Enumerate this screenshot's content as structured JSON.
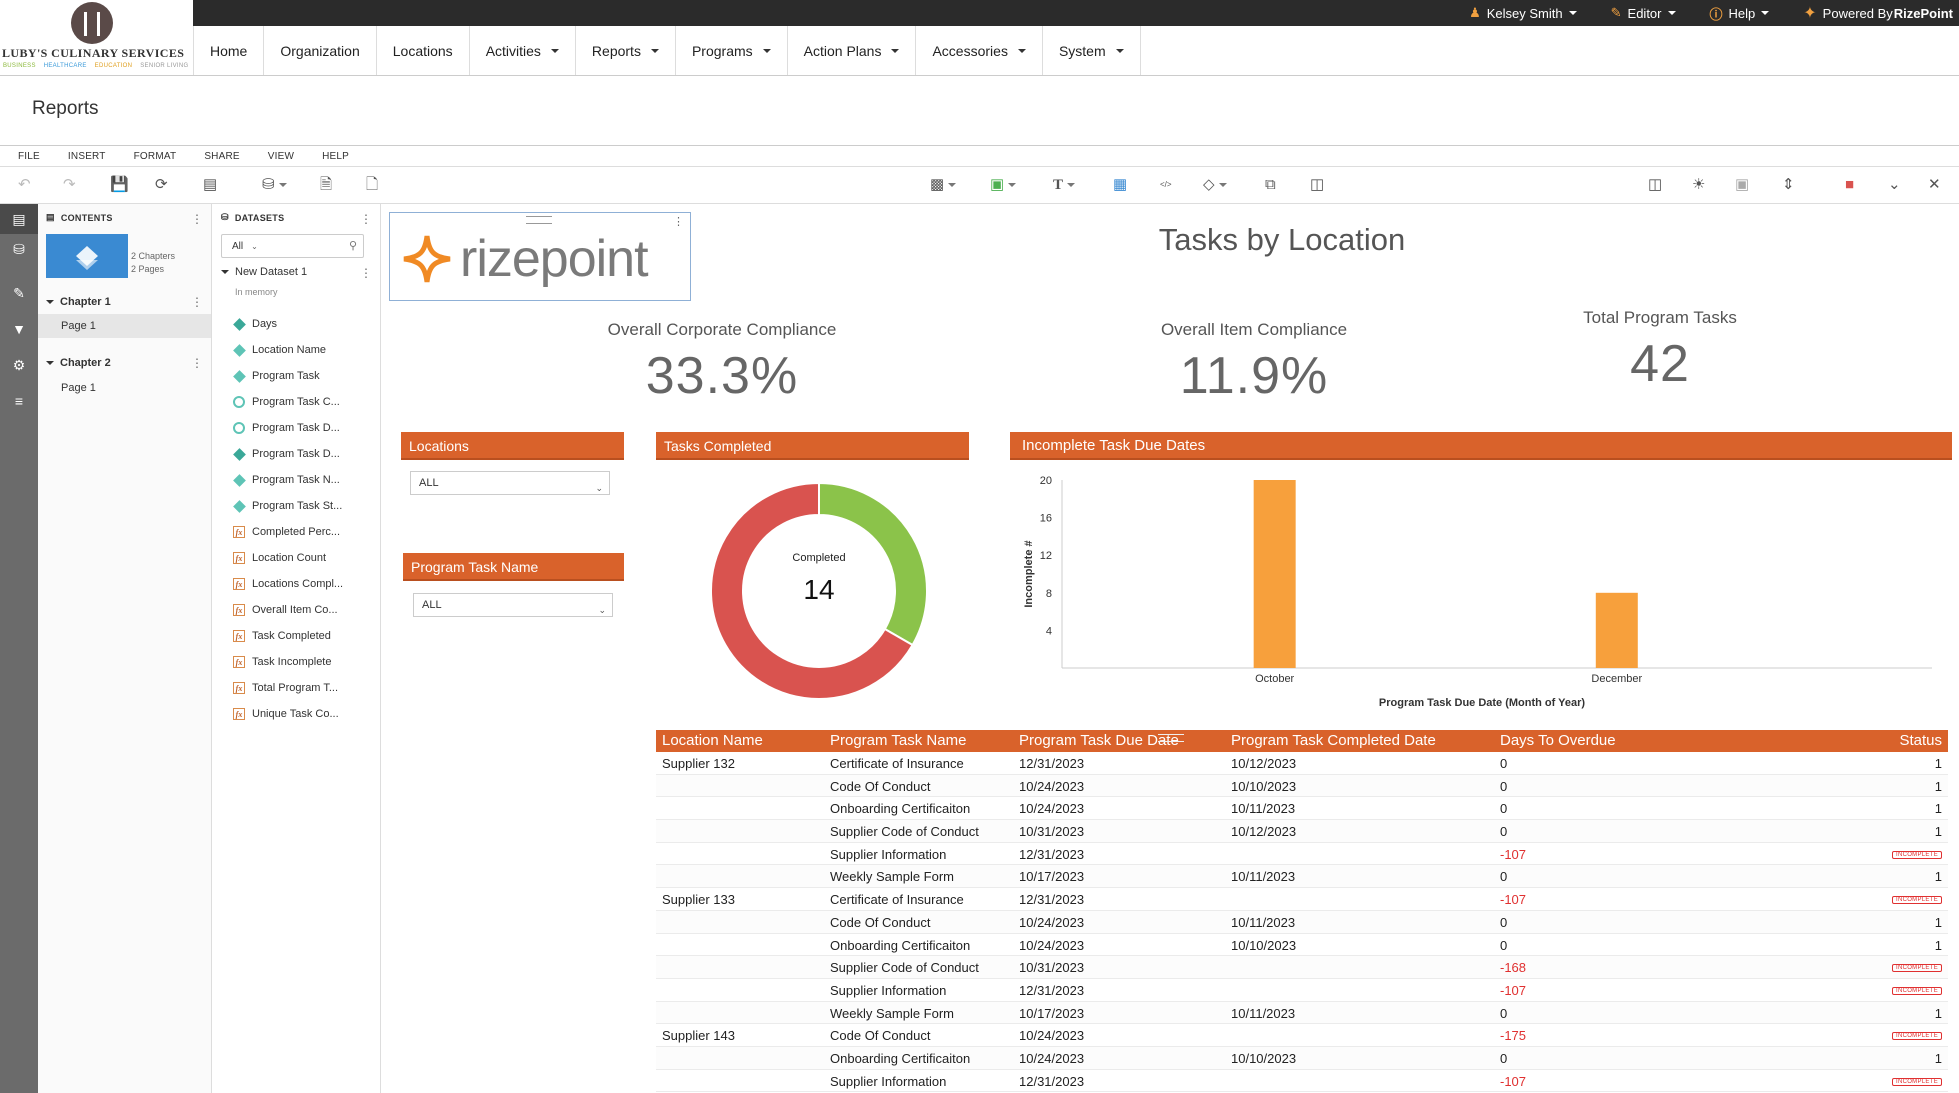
{
  "brand": {
    "name": "LUBY'S CULINARY SERVICES",
    "tags": [
      "BUSINESS",
      "HEALTHCARE",
      "EDUCATION",
      "SENIOR LIVING"
    ]
  },
  "topbar": {
    "user": "Kelsey Smith",
    "role": "Editor",
    "help": "Help",
    "powered_prefix": "Powered By ",
    "powered_brand": "RizePoint"
  },
  "nav": [
    {
      "label": "Home",
      "dropdown": false
    },
    {
      "label": "Organization",
      "dropdown": false
    },
    {
      "label": "Locations",
      "dropdown": false
    },
    {
      "label": "Activities",
      "dropdown": true
    },
    {
      "label": "Reports",
      "dropdown": true
    },
    {
      "label": "Programs",
      "dropdown": true
    },
    {
      "label": "Action Plans",
      "dropdown": true
    },
    {
      "label": "Accessories",
      "dropdown": true
    },
    {
      "label": "System",
      "dropdown": true
    }
  ],
  "page_title": "Reports",
  "menu": [
    "FILE",
    "INSERT",
    "FORMAT",
    "SHARE",
    "VIEW",
    "HELP"
  ],
  "contents": {
    "header": "CONTENTS",
    "chapters_info": "2 Chapters",
    "pages_info": "2 Pages",
    "chapters": [
      {
        "label": "Chapter 1",
        "pages": [
          "Page 1"
        ]
      },
      {
        "label": "Chapter 2",
        "pages": [
          "Page 1"
        ]
      }
    ]
  },
  "datasets": {
    "header": "DATASETS",
    "filter_value": "All",
    "dataset_name": "New Dataset 1",
    "dataset_sub": "In memory",
    "fields": [
      {
        "label": "Days",
        "icon": "dim-hybrid-icon"
      },
      {
        "label": "Location Name",
        "icon": "dimension-icon"
      },
      {
        "label": "Program Task",
        "icon": "dimension-icon"
      },
      {
        "label": "Program Task C...",
        "icon": "date-icon"
      },
      {
        "label": "Program Task D...",
        "icon": "date-icon"
      },
      {
        "label": "Program Task D...",
        "icon": "dim-hybrid-icon"
      },
      {
        "label": "Program Task N...",
        "icon": "dimension-icon"
      },
      {
        "label": "Program Task St...",
        "icon": "dimension-icon"
      },
      {
        "label": "Completed Perc...",
        "icon": "formula-icon"
      },
      {
        "label": "Location Count",
        "icon": "formula-icon"
      },
      {
        "label": "Locations Compl...",
        "icon": "formula-icon"
      },
      {
        "label": "Overall Item Co...",
        "icon": "formula-icon"
      },
      {
        "label": "Task Completed",
        "icon": "formula-icon"
      },
      {
        "label": "Task Incomplete",
        "icon": "formula-icon"
      },
      {
        "label": "Total Program T...",
        "icon": "formula-icon"
      },
      {
        "label": "Unique Task Co...",
        "icon": "formula-icon"
      }
    ]
  },
  "dashboard": {
    "logo_text": "rizepoint",
    "title": "Tasks by Location",
    "kpis": [
      {
        "label": "Overall Corporate Compliance",
        "value": "33.3%"
      },
      {
        "label": "Overall Item Compliance",
        "value": "11.9%"
      },
      {
        "label": "Total Program Tasks",
        "value": "42"
      }
    ],
    "filters": [
      {
        "label": "Locations",
        "value": "ALL"
      },
      {
        "label": "Program Task Name",
        "value": "ALL"
      }
    ],
    "donut": {
      "header": "Tasks Completed",
      "center_label": "Completed",
      "center_value": "14",
      "completed": 14,
      "incomplete": 28,
      "colors": {
        "completed": "#8bc34a",
        "incomplete": "#d9534f"
      }
    },
    "bar_header": "Incomplete Task Due Dates",
    "table": {
      "columns": [
        "Location Name",
        "Program Task Name",
        "Program Task Due Date",
        "Program Task Completed Date",
        "Days To Overdue",
        "Status"
      ],
      "badge_text": "INCOMPLETE",
      "rows": [
        {
          "loc": "Supplier 132",
          "task": "Certificate of Insurance",
          "due": "12/31/2023",
          "done": "10/12/2023",
          "days": "0",
          "status": "1",
          "inc": false
        },
        {
          "loc": "",
          "task": "Code Of Conduct",
          "due": "10/24/2023",
          "done": "10/10/2023",
          "days": "0",
          "status": "1",
          "inc": false
        },
        {
          "loc": "",
          "task": "Onboarding Certificaiton",
          "due": "10/24/2023",
          "done": "10/11/2023",
          "days": "0",
          "status": "1",
          "inc": false
        },
        {
          "loc": "",
          "task": "Supplier Code of Conduct",
          "due": "10/31/2023",
          "done": "10/12/2023",
          "days": "0",
          "status": "1",
          "inc": false
        },
        {
          "loc": "",
          "task": "Supplier Information",
          "due": "12/31/2023",
          "done": "",
          "days": "-107",
          "status": "",
          "inc": true
        },
        {
          "loc": "",
          "task": "Weekly Sample Form",
          "due": "10/17/2023",
          "done": "10/11/2023",
          "days": "0",
          "status": "1",
          "inc": false
        },
        {
          "loc": "Supplier 133",
          "task": "Certificate of Insurance",
          "due": "12/31/2023",
          "done": "",
          "days": "-107",
          "status": "",
          "inc": true
        },
        {
          "loc": "",
          "task": "Code Of Conduct",
          "due": "10/24/2023",
          "done": "10/11/2023",
          "days": "0",
          "status": "1",
          "inc": false
        },
        {
          "loc": "",
          "task": "Onboarding Certificaiton",
          "due": "10/24/2023",
          "done": "10/10/2023",
          "days": "0",
          "status": "1",
          "inc": false
        },
        {
          "loc": "",
          "task": "Supplier Code of Conduct",
          "due": "10/31/2023",
          "done": "",
          "days": "-168",
          "status": "",
          "inc": true
        },
        {
          "loc": "",
          "task": "Supplier Information",
          "due": "12/31/2023",
          "done": "",
          "days": "-107",
          "status": "",
          "inc": true
        },
        {
          "loc": "",
          "task": "Weekly Sample Form",
          "due": "10/17/2023",
          "done": "10/11/2023",
          "days": "0",
          "status": "1",
          "inc": false
        },
        {
          "loc": "Supplier 143",
          "task": "Code Of Conduct",
          "due": "10/24/2023",
          "done": "",
          "days": "-175",
          "status": "",
          "inc": true
        },
        {
          "loc": "",
          "task": "Onboarding Certificaiton",
          "due": "10/24/2023",
          "done": "10/10/2023",
          "days": "0",
          "status": "1",
          "inc": false
        },
        {
          "loc": "",
          "task": "Supplier Information",
          "due": "12/31/2023",
          "done": "",
          "days": "-107",
          "status": "",
          "inc": true
        }
      ]
    }
  },
  "chart_data": {
    "type": "bar",
    "title": "Incomplete Task Due Dates",
    "categories": [
      "October",
      "December"
    ],
    "values": [
      20,
      8
    ],
    "xlabel": "Program Task Due Date (Month of Year)",
    "ylabel": "Incomplete #",
    "ylim": [
      0,
      20
    ],
    "yticks": [
      4,
      8,
      12,
      16,
      20
    ],
    "color": "#f7a03c",
    "grid": false,
    "legend": "none"
  }
}
